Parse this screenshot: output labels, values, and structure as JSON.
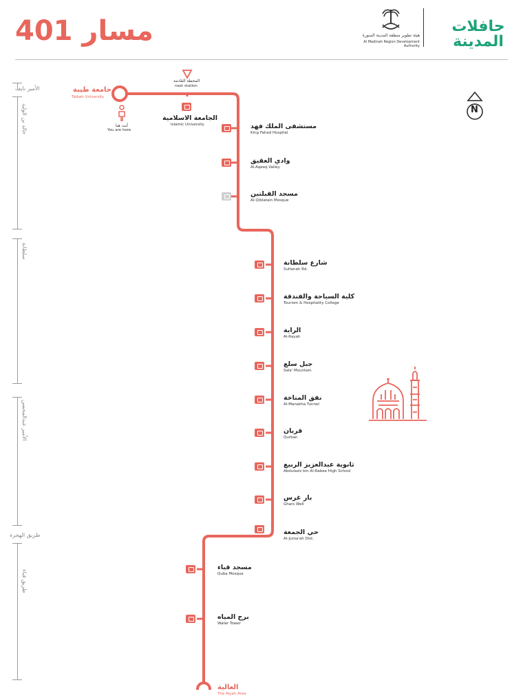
{
  "title": "مسار 401",
  "logo": {
    "line1": "حافلات",
    "line2": "المدينة",
    "authority_ar": "هيئة تطوير منطقة المدينة المنورة",
    "authority_en": "Al Madinah Region Development Authority"
  },
  "next_station": {
    "ar": "المحطة القادمة",
    "en": "next station"
  },
  "you_are_here": {
    "ar": "أنت هنا",
    "en": "You are here"
  },
  "compass": "N",
  "start": {
    "ar": "جامعة طيبة",
    "en": "Taibah University"
  },
  "end": {
    "ar": "العالية",
    "en": "The Alyah Area"
  },
  "side_segments": [
    {
      "label": "الأمير نايف"
    },
    {
      "label": "خالد بن الوليد"
    },
    {
      "label": "سلطانة"
    },
    {
      "label": "الأمير عبدالمحسن"
    },
    {
      "label": "طريق الهجرة"
    },
    {
      "label": "طريق قباء"
    }
  ],
  "stops": [
    {
      "ar": "الجامعة الاسلامية",
      "en": "Islamic University",
      "icon": "university-icon"
    },
    {
      "ar": "مستشفى الملك فهد",
      "en": "King Fahad Hospital",
      "icon": "hospital-icon"
    },
    {
      "ar": "وادي العقيق",
      "en": "Al-Aqeeq Valley",
      "icon": "valley-icon"
    },
    {
      "ar": "مسجد القبلتين",
      "en": "Al-Qiblatain Mosque",
      "icon": "mosque-icon"
    },
    {
      "ar": "شارع سلطانة",
      "en": "Sultanah Rd.",
      "icon": "shopping-icon"
    },
    {
      "ar": "كلية السياحة والفندقة",
      "en": "Tourism & Hospitality College",
      "icon": "college-icon"
    },
    {
      "ar": "الراية",
      "en": "Al-Rayah",
      "icon": "building-icon"
    },
    {
      "ar": "جبل سلع",
      "en": "Sala' Mountain",
      "icon": "mountain-icon"
    },
    {
      "ar": "نفق المناخة",
      "en": "Al-Manakha Tunnel",
      "icon": "shopping-icon"
    },
    {
      "ar": "قربان",
      "en": "Qurban",
      "icon": "building-icon"
    },
    {
      "ar": "ثانوية عبدالعزيز الربيع",
      "en": "Abdulaziz bin Al-Rabee High School",
      "icon": "school-icon"
    },
    {
      "ar": "بار غرس",
      "en": "Ghars Well",
      "icon": "well-icon"
    },
    {
      "ar": "حي الجمعة",
      "en": "Al-Juma'ah Dist.",
      "icon": "building-icon"
    },
    {
      "ar": "مسجد قباء",
      "en": "Quba Mosque",
      "icon": "mosque-icon"
    },
    {
      "ar": "برج المياه",
      "en": "Water Tower",
      "icon": "tower-icon"
    }
  ],
  "colors": {
    "route": "#e8665c",
    "brand": "#1ea27a",
    "text": "#222222"
  }
}
